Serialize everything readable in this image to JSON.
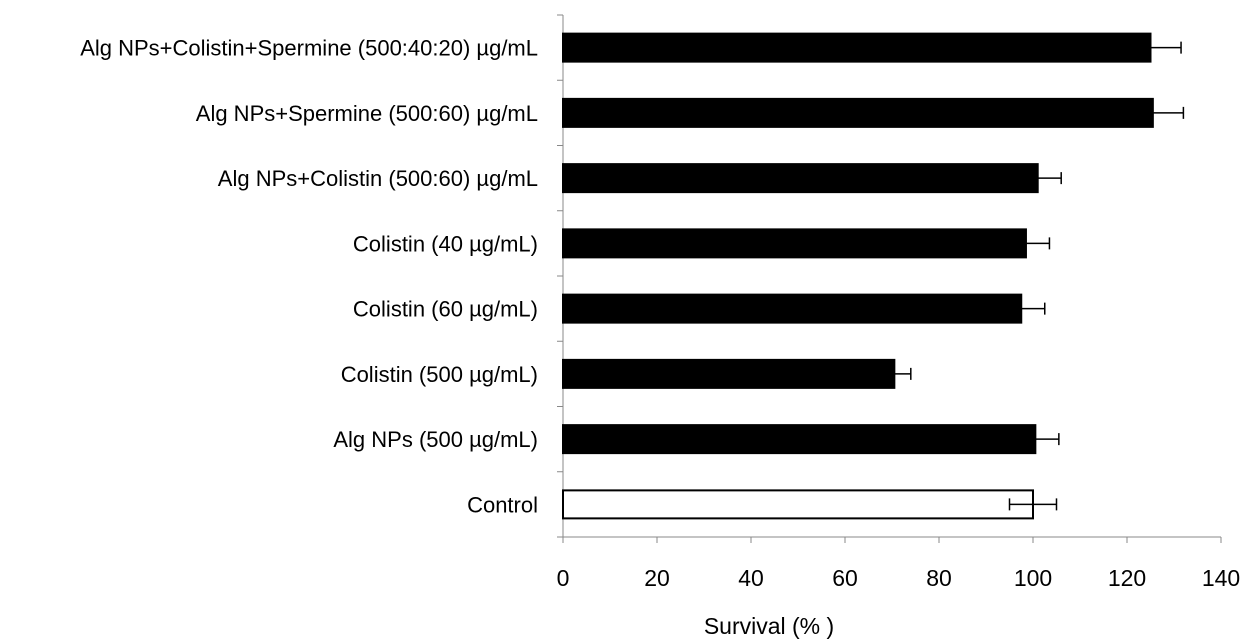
{
  "chart_data": {
    "type": "bar",
    "orientation": "horizontal",
    "categories": [
      "Control",
      "Alg NPs (500 µg/mL)",
      "Colistin (500 µg/mL)",
      "Colistin (60 µg/mL)",
      "Colistin (40 µg/mL)",
      "Alg NPs+Colistin (500:60) µg/mL",
      "Alg NPs+Spermine (500:60) µg/mL",
      "Alg NPs+Colistin+Spermine (500:40:20) µg/mL"
    ],
    "series": [
      {
        "values": [
          100,
          100.5,
          70.5,
          97.5,
          98.5,
          101,
          125.5,
          125
        ],
        "errors": [
          5,
          5,
          3.5,
          5,
          5,
          5,
          6.5,
          6.5
        ],
        "fills": [
          "#ffffff",
          "#000000",
          "#000000",
          "#000000",
          "#000000",
          "#000000",
          "#000000",
          "#000000"
        ]
      }
    ],
    "title": "",
    "xlabel": "Survival (% )",
    "ylabel": "",
    "xlim": [
      0,
      140
    ],
    "xticks": [
      0,
      20,
      40,
      60,
      80,
      100,
      120,
      140
    ],
    "grid": false,
    "legend": "none"
  }
}
